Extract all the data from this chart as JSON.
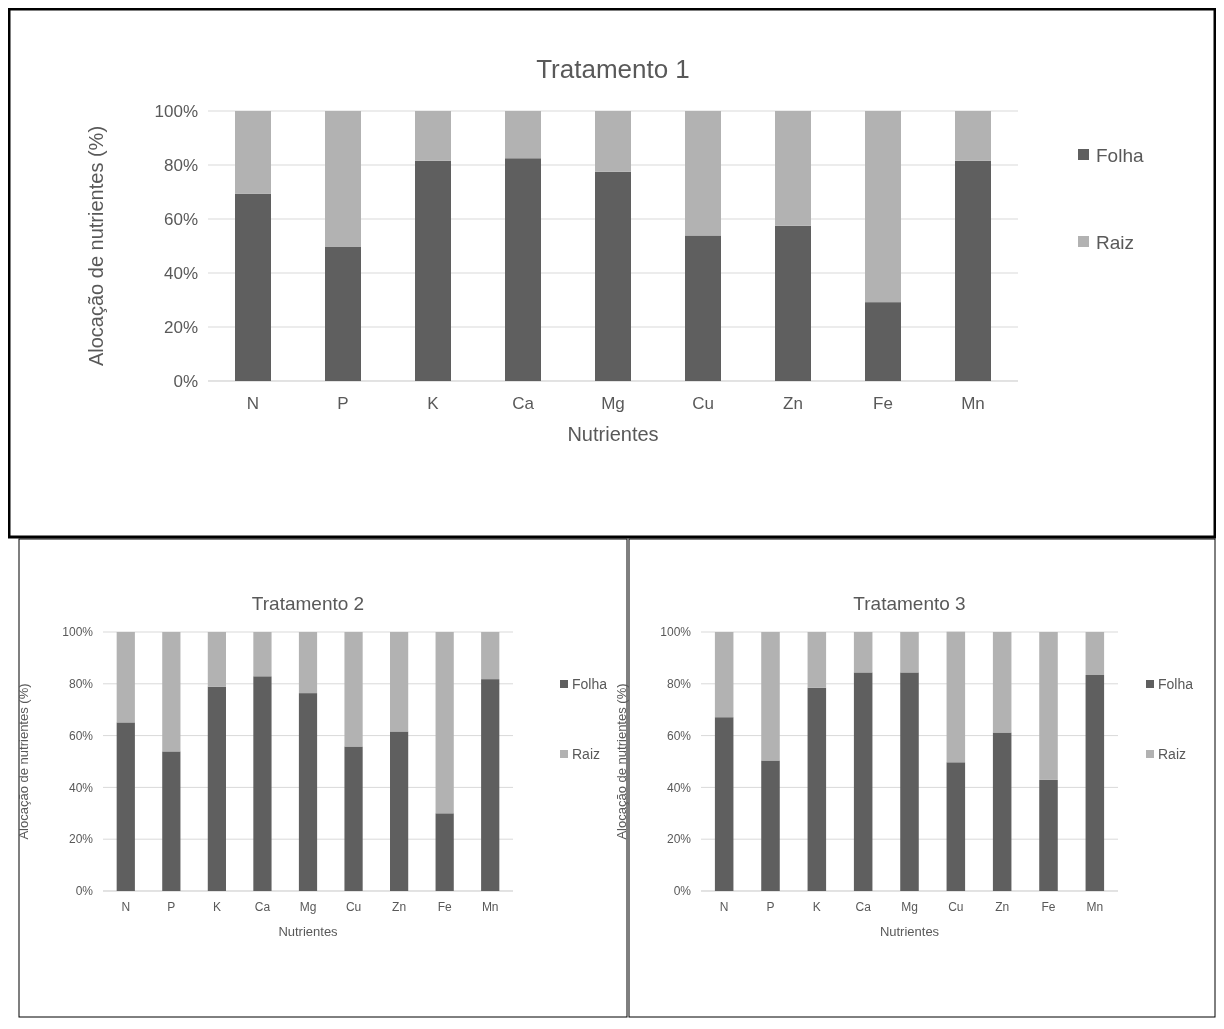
{
  "chart_data": [
    {
      "type": "bar",
      "title": "Tratamento 1",
      "xlabel": "Nutrientes",
      "ylabel": "Alocação de nutrientes (%)",
      "categories": [
        "N",
        "P",
        "K",
        "Ca",
        "Mg",
        "Cu",
        "Zn",
        "Fe",
        "Mn"
      ],
      "stacked": true,
      "grid": "y",
      "legend": "right",
      "ylim": [
        0,
        100
      ],
      "yticks": [
        {
          "value": 0,
          "label": "0%"
        },
        {
          "value": 20,
          "label": "20%"
        },
        {
          "value": 40,
          "label": "40%"
        },
        {
          "value": 60,
          "label": "60%"
        },
        {
          "value": 80,
          "label": "80%"
        },
        {
          "value": 100,
          "label": "100%"
        }
      ],
      "series": [
        {
          "name": "Folha",
          "color": "#5f5f5f",
          "values": [
            69.4,
            49.8,
            81.6,
            82.5,
            77.5,
            53.9,
            57.5,
            29.2,
            81.6
          ]
        },
        {
          "name": "Raiz",
          "color": "#b2b2b2",
          "values": [
            30.6,
            50.2,
            18.4,
            17.5,
            22.5,
            46.1,
            42.5,
            70.8,
            18.4
          ]
        }
      ]
    },
    {
      "type": "bar",
      "title": "Tratamento 2",
      "xlabel": "Nutrientes",
      "ylabel": "Alocação de nutrientes (%)",
      "categories": [
        "N",
        "P",
        "K",
        "Ca",
        "Mg",
        "Cu",
        "Zn",
        "Fe",
        "Mn"
      ],
      "stacked": true,
      "grid": "y",
      "legend": "right",
      "ylim": [
        0,
        100
      ],
      "yticks": [
        {
          "value": 0,
          "label": "0%"
        },
        {
          "value": 20,
          "label": "20%"
        },
        {
          "value": 40,
          "label": "40%"
        },
        {
          "value": 60,
          "label": "60%"
        },
        {
          "value": 80,
          "label": "80%"
        },
        {
          "value": 100,
          "label": "100%"
        }
      ],
      "series": [
        {
          "name": "Folha",
          "color": "#5f5f5f",
          "values": [
            65.1,
            53.9,
            78.9,
            82.9,
            76.4,
            55.8,
            61.6,
            30.0,
            81.8
          ]
        },
        {
          "name": "Raiz",
          "color": "#b2b2b2",
          "values": [
            34.9,
            46.1,
            21.1,
            17.1,
            23.6,
            44.2,
            38.4,
            70.0,
            18.2
          ]
        }
      ]
    },
    {
      "type": "bar",
      "title": "Tratamento 3",
      "xlabel": "Nutrientes",
      "ylabel": "Alocação de nutrientes (%)",
      "categories": [
        "N",
        "P",
        "K",
        "Ca",
        "Mg",
        "Cu",
        "Zn",
        "Fe",
        "Mn"
      ],
      "stacked": true,
      "grid": "y",
      "legend": "right",
      "ylim": [
        0,
        100
      ],
      "yticks": [
        {
          "value": 0,
          "label": "0%"
        },
        {
          "value": 20,
          "label": "20%"
        },
        {
          "value": 40,
          "label": "40%"
        },
        {
          "value": 60,
          "label": "60%"
        },
        {
          "value": 80,
          "label": "80%"
        },
        {
          "value": 100,
          "label": "100%"
        }
      ],
      "series": [
        {
          "name": "Folha",
          "color": "#5f5f5f",
          "values": [
            67.1,
            50.4,
            78.5,
            84.4,
            84.4,
            49.7,
            61.2,
            42.9,
            83.4
          ]
        },
        {
          "name": "Raiz",
          "color": "#b2b2b2",
          "values": [
            32.9,
            49.6,
            21.5,
            15.6,
            15.6,
            50.4,
            38.8,
            57.1,
            16.6
          ]
        }
      ]
    }
  ]
}
